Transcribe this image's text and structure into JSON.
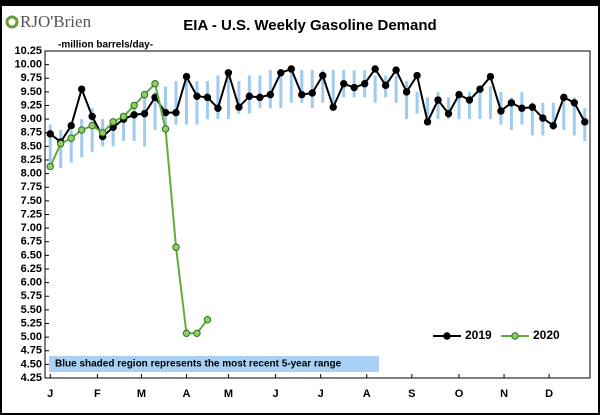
{
  "logo": "RJO'Brien",
  "chart_data": {
    "type": "line",
    "title": "EIA - U.S. Weekly Gasoline Demand",
    "subtitle": "-million barrels/day-",
    "annotation": "Blue shaded region represents the most recent 5-year range",
    "x": [
      1,
      2,
      3,
      4,
      5,
      6,
      7,
      8,
      9,
      10,
      11,
      12,
      13,
      14,
      15,
      16,
      17,
      18,
      19,
      20,
      21,
      22,
      23,
      24,
      25,
      26,
      27,
      28,
      29,
      30,
      31,
      32,
      33,
      34,
      35,
      36,
      37,
      38,
      39,
      40,
      41,
      42,
      43,
      44,
      45,
      46,
      47,
      48,
      49,
      50,
      51,
      52
    ],
    "xlim": [
      0.5,
      52.5
    ],
    "xticks": [
      {
        "value": 1,
        "label": "J"
      },
      {
        "value": 5.5,
        "label": "F"
      },
      {
        "value": 9.7,
        "label": "M"
      },
      {
        "value": 14,
        "label": "A"
      },
      {
        "value": 18,
        "label": "M"
      },
      {
        "value": 22.5,
        "label": "J"
      },
      {
        "value": 26.8,
        "label": "J"
      },
      {
        "value": 31.2,
        "label": "A"
      },
      {
        "value": 35.5,
        "label": "S"
      },
      {
        "value": 40,
        "label": "O"
      },
      {
        "value": 44.3,
        "label": "N"
      },
      {
        "value": 48.6,
        "label": "D"
      }
    ],
    "ylim": [
      4.25,
      10.25
    ],
    "yticks": [
      4.25,
      {
        "value": 4.5,
        "label": "4.50"
      },
      4.75,
      {
        "value": 5,
        "label": "5.00"
      },
      5.25,
      {
        "value": 5.5,
        "label": "5.50"
      },
      5.75,
      {
        "value": 6,
        "label": "6.00"
      },
      6.25,
      {
        "value": 6.5,
        "label": "6.50"
      },
      6.75,
      {
        "value": 7,
        "label": "7.00"
      },
      7.25,
      {
        "value": 7.5,
        "label": "7.50"
      },
      7.75,
      {
        "value": 8,
        "label": "8.00"
      },
      8.25,
      {
        "value": 8.5,
        "label": "8.50"
      },
      8.75,
      {
        "value": 9,
        "label": "9.00"
      },
      9.25,
      {
        "value": 9.5,
        "label": "9.50"
      },
      9.75,
      {
        "value": 10,
        "label": "10.00"
      },
      10.25
    ],
    "grid": false,
    "legend": "lower right",
    "range": {
      "color": "#9fcbf0",
      "low": [
        8.1,
        8.1,
        8.2,
        8.3,
        8.4,
        8.5,
        8.5,
        8.6,
        8.6,
        8.5,
        8.8,
        8.8,
        8.9,
        8.9,
        8.9,
        9.0,
        9.0,
        9.0,
        9.1,
        9.1,
        9.2,
        9.2,
        9.2,
        9.3,
        9.3,
        9.2,
        9.3,
        9.3,
        9.4,
        9.4,
        9.4,
        9.3,
        9.4,
        9.3,
        9.0,
        9.1,
        9.0,
        9.0,
        9.0,
        9.0,
        9.0,
        9.0,
        9.0,
        8.9,
        8.8,
        8.9,
        8.7,
        8.7,
        8.8,
        8.8,
        8.7,
        8.6
      ],
      "high": [
        8.9,
        8.8,
        8.8,
        9.0,
        9.2,
        9.0,
        9.0,
        9.1,
        9.3,
        9.4,
        9.5,
        9.6,
        9.7,
        9.7,
        9.7,
        9.7,
        9.8,
        9.8,
        9.7,
        9.8,
        9.8,
        9.9,
        9.9,
        9.9,
        9.9,
        9.9,
        9.9,
        9.9,
        9.9,
        9.9,
        9.9,
        9.8,
        9.8,
        9.8,
        9.7,
        9.5,
        9.4,
        9.5,
        9.4,
        9.5,
        9.5,
        9.6,
        9.6,
        9.5,
        9.4,
        9.5,
        9.3,
        9.3,
        9.3,
        9.4,
        9.4,
        9.2
      ]
    },
    "series": [
      {
        "name": "2019",
        "color": "#000000",
        "values": [
          8.73,
          8.58,
          8.88,
          9.55,
          9.05,
          8.68,
          8.85,
          9.0,
          9.08,
          9.1,
          9.4,
          9.12,
          9.12,
          9.78,
          9.42,
          9.4,
          9.2,
          9.85,
          9.22,
          9.42,
          9.4,
          9.45,
          9.85,
          9.92,
          9.45,
          9.48,
          9.8,
          9.22,
          9.65,
          9.58,
          9.65,
          9.92,
          9.62,
          9.9,
          9.5,
          9.8,
          8.95,
          9.35,
          9.1,
          9.45,
          9.35,
          9.55,
          9.78,
          9.15,
          9.3,
          9.2,
          9.22,
          9.02,
          8.88,
          9.4,
          9.3,
          8.95
        ]
      },
      {
        "name": "2020",
        "color": "#5fae3c",
        "values": [
          8.13,
          8.55,
          8.65,
          8.8,
          8.88,
          8.75,
          8.95,
          9.05,
          9.25,
          9.45,
          9.65,
          8.82,
          6.65,
          5.07,
          5.07,
          5.32,
          null,
          null,
          null,
          null,
          null,
          null,
          null,
          null,
          null,
          null,
          null,
          null,
          null,
          null,
          null,
          null,
          null,
          null,
          null,
          null,
          null,
          null,
          null,
          null,
          null,
          null,
          null,
          null,
          null,
          null,
          null,
          null,
          null,
          null,
          null,
          null
        ]
      }
    ]
  }
}
